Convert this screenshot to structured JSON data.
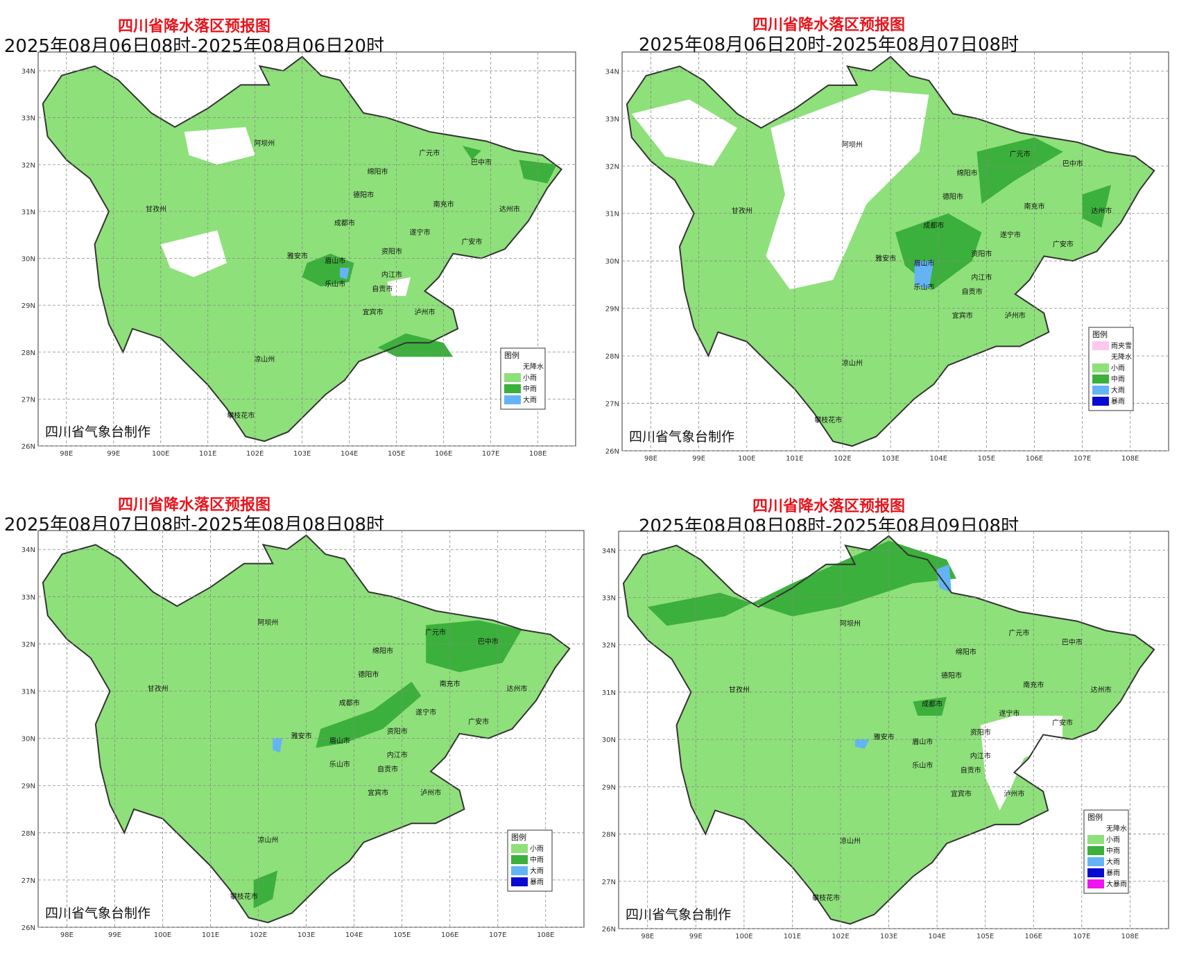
{
  "colors": {
    "no_precip": "#ffffff",
    "light_rain": "#8ee07a",
    "moderate_rain": "#3cb03c",
    "heavy_rain": "#64b4f5",
    "rainstorm": "#0a0ad2",
    "heavy_rainstorm": "#f014f0",
    "sleet": "#fcc8f0",
    "boundary": "#333333"
  },
  "axes": {
    "lon_labels": [
      "98E",
      "99E",
      "100E",
      "101E",
      "102E",
      "103E",
      "104E",
      "105E",
      "106E",
      "107E",
      "108E"
    ],
    "lat_labels": [
      "34N",
      "33N",
      "32N",
      "31N",
      "30N",
      "29N",
      "28N",
      "27N",
      "26N"
    ]
  },
  "cities": [
    "阿坝州",
    "广元市",
    "巴中市",
    "绵阳市",
    "甘孜州",
    "德阳市",
    "南充市",
    "达州市",
    "成都市",
    "遂宁市",
    "广安市",
    "雅安市",
    "资阳市",
    "眉山市",
    "内江市",
    "乐山市",
    "自贡市",
    "宜宾市",
    "泸州市",
    "凉山州",
    "攀枝花市"
  ],
  "panels": [
    {
      "title": "四川省降水落区预报图",
      "subtitle": "2025年08月06日08时-2025年08月06日20时",
      "credit": "四川省气象台制作",
      "legend_title": "图例",
      "legend": [
        {
          "label": "无降水",
          "color": "#ffffff"
        },
        {
          "label": "小雨",
          "color": "#8ee07a"
        },
        {
          "label": "中雨",
          "color": "#3cb03c"
        },
        {
          "label": "大雨",
          "color": "#64b4f5"
        }
      ]
    },
    {
      "title": "四川省降水落区预报图",
      "subtitle": "2025年08月06日20时-2025年08月07日08时",
      "credit": "四川省气象台制作",
      "legend_title": "图例",
      "legend": [
        {
          "label": "雨夹雪",
          "color": "#fcc8f0"
        },
        {
          "label": "无降水",
          "color": "#ffffff"
        },
        {
          "label": "小雨",
          "color": "#8ee07a"
        },
        {
          "label": "中雨",
          "color": "#3cb03c"
        },
        {
          "label": "大雨",
          "color": "#64b4f5"
        },
        {
          "label": "暴雨",
          "color": "#0a0ad2"
        }
      ]
    },
    {
      "title": "四川省降水落区预报图",
      "subtitle": "2025年08月07日08时-2025年08月08日08时",
      "credit": "四川省气象台制作",
      "legend_title": "图例",
      "legend": [
        {
          "label": "小雨",
          "color": "#8ee07a"
        },
        {
          "label": "中雨",
          "color": "#3cb03c"
        },
        {
          "label": "大雨",
          "color": "#64b4f5"
        },
        {
          "label": "暴雨",
          "color": "#0a0ad2"
        }
      ]
    },
    {
      "title": "四川省降水落区预报图",
      "subtitle": "2025年08月08日08时-2025年08月09日08时",
      "credit": "四川省气象台制作",
      "legend_title": "图例",
      "legend": [
        {
          "label": "无降水",
          "color": "#ffffff"
        },
        {
          "label": "小雨",
          "color": "#8ee07a"
        },
        {
          "label": "中雨",
          "color": "#3cb03c"
        },
        {
          "label": "大雨",
          "color": "#64b4f5"
        },
        {
          "label": "暴雨",
          "color": "#0a0ad2"
        },
        {
          "label": "大暴雨",
          "color": "#f014f0"
        }
      ]
    }
  ]
}
